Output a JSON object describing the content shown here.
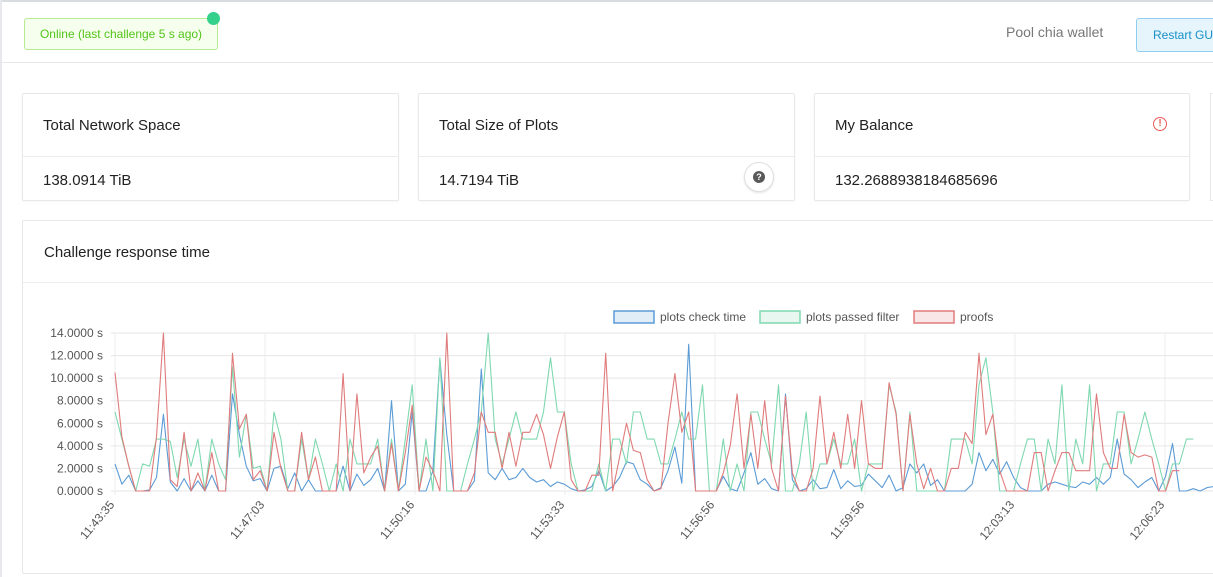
{
  "header": {
    "status": "Online (last challenge 5 s ago)",
    "pool_wallet": "Pool chia wallet",
    "restart": "Restart GUI"
  },
  "cards": [
    {
      "title": "Total Network Space",
      "value": "138.0914 TiB"
    },
    {
      "title": "Total Size of Plots",
      "value": "14.7194 TiB",
      "icon": "help-icon"
    },
    {
      "title": "My Balance",
      "value": "132.2688938184685696",
      "icon": "warning-icon"
    }
  ],
  "colors": {
    "status_green": "#52c41a",
    "check_time": "#5b9bd5",
    "passed_filter": "#7fd8b0",
    "proofs": "#e07b7b"
  },
  "chart_data": {
    "type": "line",
    "title": "Challenge response time",
    "legend": [
      "plots check time",
      "plots passed filter",
      "proofs"
    ],
    "legend_position": "top-center",
    "y_ticks": [
      "0.0000 s",
      "2.0000 s",
      "4.0000 s",
      "6.0000 s",
      "8.0000 s",
      "10.0000 s",
      "12.0000 s",
      "14.0000 s"
    ],
    "ylim": [
      0,
      14
    ],
    "x_ticks": [
      "11:43:35",
      "11:47:03",
      "11:50:16",
      "11:53:33",
      "11:56:56",
      "11:59:56",
      "12:03:13",
      "12:06:23"
    ],
    "grid": true,
    "series": [
      {
        "name": "plots check time",
        "values": [
          2.4,
          0.6,
          1.4,
          0.0,
          0.0,
          0.1,
          1.2,
          6.8,
          0.8,
          0.0,
          1.1,
          0.0,
          0.9,
          0.0,
          1.4,
          0.0,
          0.0,
          8.6,
          5.0,
          2.2,
          0.9,
          1.1,
          0.0,
          2.0,
          2.2,
          0.2,
          1.6,
          0.0,
          1.0,
          0.0,
          0.0,
          0.0,
          0.0,
          2.2,
          0.0,
          1.5,
          0.5,
          1.0,
          2.0,
          0.0,
          8.0,
          0.0,
          0.6,
          7.0,
          0.0,
          0.0,
          1.8,
          11.7,
          5.0,
          0.0,
          0.0,
          0.0,
          0.9,
          10.8,
          1.6,
          1.0,
          2.0,
          1.0,
          1.2,
          2.0,
          1.2,
          0.8,
          1.0,
          0.4,
          0.8,
          0.6,
          0.2,
          0.0,
          0.1,
          0.4,
          1.8,
          0.0,
          0.4,
          1.2,
          2.6,
          2.4,
          1.0,
          0.6,
          0.0,
          0.3,
          1.8,
          3.9,
          0.7,
          13.0,
          0.0,
          0.0,
          0.0,
          0.0,
          1.3,
          0.2,
          0.0,
          1.6,
          3.4,
          0.6,
          1.1,
          0.2,
          0.0,
          8.6,
          1.0,
          0.0,
          0.2,
          1.0,
          0.2,
          0.3,
          1.9,
          0.2,
          0.9,
          0.4,
          0.5,
          1.5,
          0.9,
          0.3,
          1.4,
          0.0,
          0.3,
          2.4,
          1.6,
          2.4,
          0.5,
          1.0,
          0.0,
          0.0,
          0.0,
          0.0,
          0.6,
          3.4,
          1.8,
          2.8,
          1.5,
          2.6,
          1.2,
          0.3,
          0.0,
          0.0,
          0.0,
          0.6,
          0.8,
          0.6,
          0.4,
          0.3,
          0.8,
          0.6,
          1.2,
          0.6,
          1.2,
          4.6,
          1.5,
          1.0,
          0.3,
          0.8,
          1.2,
          0.0,
          1.3,
          4.2,
          0.0,
          0.0,
          0.2,
          0.0,
          0.3,
          0.4
        ]
      },
      {
        "name": "plots passed filter",
        "values": [
          7.0,
          4.6,
          2.2,
          0.0,
          2.4,
          2.2,
          4.6,
          4.6,
          4.4,
          1.2,
          4.6,
          2.2,
          4.6,
          0.0,
          4.6,
          2.4,
          1.0,
          11.0,
          3.0,
          6.8,
          2.0,
          2.2,
          0.0,
          7.0,
          4.6,
          0.0,
          0.0,
          4.6,
          1.0,
          4.6,
          2.4,
          0.0,
          2.4,
          0.0,
          4.6,
          2.4,
          2.4,
          2.4,
          4.6,
          0.0,
          4.6,
          0.0,
          4.6,
          9.4,
          0.0,
          4.6,
          0.0,
          11.8,
          0.0,
          0.0,
          0.0,
          2.4,
          4.6,
          7.0,
          14.0,
          4.6,
          2.4,
          4.6,
          7.0,
          4.6,
          4.6,
          4.6,
          7.0,
          11.8,
          7.0,
          7.0,
          2.4,
          0.0,
          0.0,
          0.0,
          2.4,
          0.0,
          4.6,
          4.6,
          2.4,
          7.0,
          7.0,
          4.6,
          4.6,
          2.4,
          2.4,
          4.6,
          7.0,
          4.6,
          4.6,
          9.4,
          0.0,
          0.0,
          4.6,
          0.0,
          2.4,
          0.0,
          7.0,
          7.0,
          4.6,
          2.4,
          9.4,
          0.0,
          0.0,
          2.4,
          7.0,
          0.0,
          2.4,
          2.4,
          4.6,
          2.4,
          2.4,
          4.6,
          0.0,
          2.4,
          2.4,
          2.4,
          9.4,
          7.0,
          0.0,
          7.0,
          0.0,
          0.0,
          0.0,
          0.0,
          0.0,
          4.6,
          4.6,
          4.6,
          2.4,
          9.4,
          11.8,
          7.0,
          0.0,
          0.0,
          0.0,
          2.4,
          4.6,
          4.6,
          0.0,
          4.6,
          2.4,
          9.4,
          0.0,
          4.6,
          2.4,
          9.4,
          0.0,
          2.4,
          2.4,
          7.0,
          7.0,
          2.4,
          4.6,
          7.0,
          4.6,
          2.4,
          0.0,
          2.4,
          2.4,
          4.6,
          4.6
        ]
      },
      {
        "name": "proofs",
        "values": [
          10.5,
          4.8,
          2.2,
          0.0,
          0.0,
          0.0,
          4.8,
          14.0,
          1.0,
          0.4,
          5.2,
          0.0,
          1.6,
          0.0,
          3.4,
          0.0,
          0.0,
          12.2,
          5.5,
          6.8,
          1.0,
          1.8,
          0.0,
          5.2,
          2.0,
          0.0,
          0.0,
          5.2,
          1.0,
          3.0,
          0.0,
          0.0,
          0.0,
          10.4,
          0.0,
          8.6,
          1.6,
          3.0,
          4.0,
          0.0,
          4.2,
          0.0,
          3.4,
          7.6,
          0.0,
          3.0,
          1.8,
          0.0,
          14.0,
          0.0,
          0.0,
          0.0,
          1.6,
          7.0,
          5.2,
          5.2,
          2.0,
          5.2,
          2.2,
          5.2,
          5.2,
          6.8,
          5.0,
          2.0,
          4.8,
          7.0,
          1.0,
          0.0,
          0.0,
          1.4,
          1.4,
          12.2,
          0.0,
          3.0,
          6.0,
          3.6,
          3.4,
          1.0,
          0.0,
          0.2,
          6.0,
          10.4,
          5.2,
          7.0,
          0.0,
          0.0,
          0.0,
          0.0,
          1.6,
          4.0,
          8.6,
          2.0,
          6.8,
          2.0,
          8.0,
          2.0,
          0.0,
          8.4,
          1.6,
          0.0,
          0.0,
          2.0,
          8.4,
          2.4,
          5.2,
          2.0,
          6.8,
          2.0,
          8.0,
          2.4,
          2.0,
          2.0,
          9.6,
          6.8,
          0.0,
          6.8,
          2.4,
          0.2,
          2.0,
          0.0,
          0.0,
          2.0,
          2.0,
          5.2,
          4.2,
          12.2,
          5.0,
          6.8,
          1.8,
          0.0,
          0.0,
          0.0,
          0.0,
          3.4,
          3.4,
          0.0,
          1.8,
          3.4,
          3.4,
          1.8,
          1.8,
          1.8,
          8.6,
          3.4,
          2.0,
          2.0,
          6.8,
          3.4,
          3.0,
          3.2,
          3.0,
          0.0,
          0.0,
          1.8,
          1.8
        ]
      }
    ]
  }
}
